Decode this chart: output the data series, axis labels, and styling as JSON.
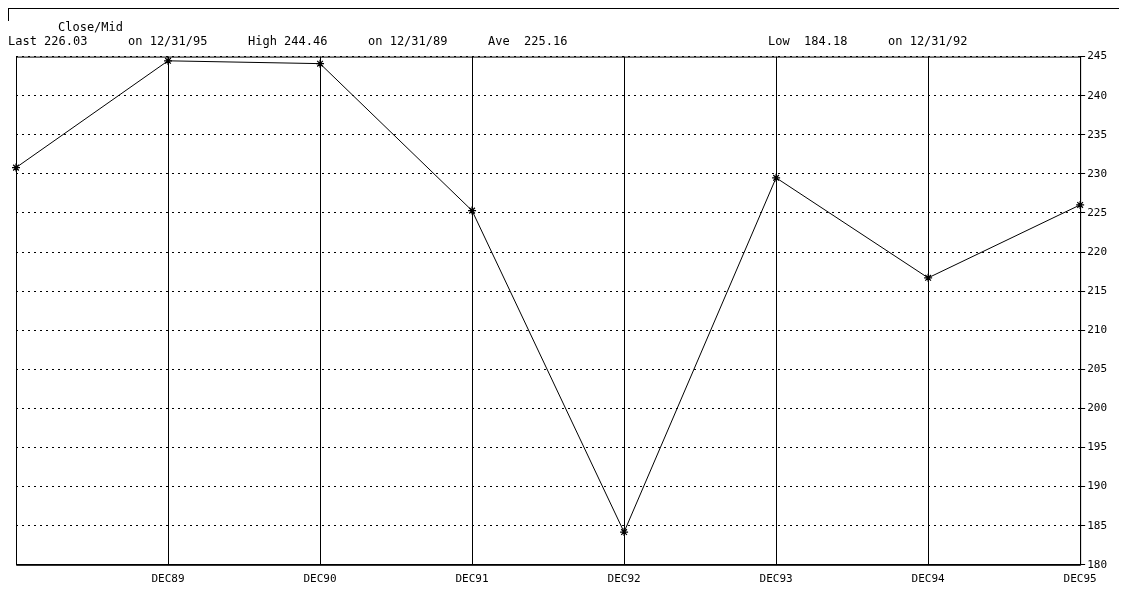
{
  "chart_data": {
    "type": "line",
    "title": "Close/Mid",
    "annotations": [
      "Last 226.03",
      "on 12/31/95",
      "High 244.46",
      "on 12/31/89",
      "Ave  225.16",
      "Low  184.18",
      "on 12/31/92"
    ],
    "categories": [
      null,
      "DEC89",
      "DEC90",
      "DEC91",
      "DEC92",
      "DEC93",
      "DEC94",
      "DEC95"
    ],
    "series": [
      {
        "color": "#000000",
        "values": [
          230.8,
          244.46,
          244.1,
          225.3,
          184.18,
          229.5,
          216.7,
          226.03
        ]
      }
    ],
    "ylim": [
      180,
      245
    ],
    "yticks": [
      180,
      185,
      190,
      195,
      200,
      205,
      210,
      215,
      220,
      225,
      230,
      235,
      240,
      245
    ],
    "grid": true,
    "marker": "cross",
    "line_style": "solid",
    "legend": false
  }
}
